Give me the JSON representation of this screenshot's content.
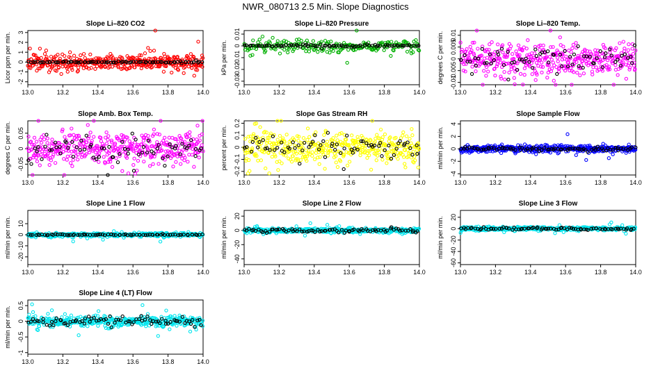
{
  "main_title": "NWR_080713  2.5 Min. Slope Diagnostics",
  "chart_data": [
    {
      "type": "scatter",
      "title": "Slope Li–820 CO2",
      "ylabel": "Licor ppm per min.",
      "xlim": [
        13.0,
        14.0
      ],
      "ylim": [
        -2.3,
        3.2
      ],
      "yticks": [
        -2,
        -1,
        0,
        1,
        2,
        3
      ],
      "xticks": [
        13.0,
        13.2,
        13.4,
        13.6,
        13.8,
        14.0
      ],
      "series": [
        {
          "color": "#ff0000",
          "center": 0.0,
          "spread": 0.7,
          "n": 420,
          "seed": 11
        },
        {
          "color": "#000000",
          "center": 0.0,
          "spread": 0.06,
          "n": 80,
          "seed": 12
        }
      ]
    },
    {
      "type": "scatter",
      "title": "Slope Li–820 Pressure",
      "ylabel": "kPa per min.",
      "xlim": [
        13.0,
        14.0
      ],
      "ylim": [
        -0.033,
        0.013
      ],
      "yticks": [
        -0.03,
        -0.02,
        -0.01,
        0.0,
        0.01
      ],
      "xticks": [
        13.0,
        13.2,
        13.4,
        13.6,
        13.8,
        14.0
      ],
      "series": [
        {
          "color": "#00b000",
          "center": 0.0,
          "spread": 0.005,
          "n": 240,
          "seed": 21
        },
        {
          "color": "#000000",
          "center": 0.0,
          "spread": 0.0008,
          "n": 80,
          "seed": 22
        }
      ]
    },
    {
      "type": "scatter",
      "title": "Slope Li–820 Temp.",
      "ylabel": "degrees C per min.",
      "xlim": [
        13.0,
        14.0
      ],
      "ylim": [
        -0.011,
        0.012
      ],
      "yticks": [
        -0.01,
        -0.005,
        0.0,
        0.005,
        0.01
      ],
      "xticks": [
        13.0,
        13.2,
        13.4,
        13.6,
        13.8,
        14.0
      ],
      "series": [
        {
          "color": "#ff00ff",
          "center": 0.0,
          "spread": 0.006,
          "n": 420,
          "seed": 31
        },
        {
          "color": "#000000",
          "center": 0.0,
          "spread": 0.004,
          "n": 70,
          "seed": 32
        }
      ]
    },
    {
      "type": "scatter",
      "title": "Slope Amb. Box Temp.",
      "ylabel": "degrees C per min.",
      "xlim": [
        13.0,
        14.0
      ],
      "ylim": [
        -0.085,
        0.09
      ],
      "yticks": [
        -0.05,
        0.0,
        0.05
      ],
      "xticks": [
        13.0,
        13.2,
        13.4,
        13.6,
        13.8,
        14.0
      ],
      "series": [
        {
          "color": "#ff00ff",
          "center": 0.0,
          "spread": 0.045,
          "n": 420,
          "seed": 41
        },
        {
          "color": "#000000",
          "center": 0.0,
          "spread": 0.035,
          "n": 70,
          "seed": 42
        }
      ]
    },
    {
      "type": "scatter",
      "title": "Slope Gas Stream RH",
      "ylabel": "percent per min.",
      "xlim": [
        13.0,
        14.0
      ],
      "ylim": [
        -0.23,
        0.22
      ],
      "yticks": [
        -0.2,
        -0.1,
        0.0,
        0.1,
        0.2
      ],
      "xticks": [
        13.0,
        13.2,
        13.4,
        13.6,
        13.8,
        14.0
      ],
      "series": [
        {
          "color": "#ffff00",
          "center": 0.0,
          "spread": 0.12,
          "n": 420,
          "seed": 51
        },
        {
          "color": "#000000",
          "center": 0.0,
          "spread": 0.08,
          "n": 70,
          "seed": 52
        }
      ]
    },
    {
      "type": "scatter",
      "title": "Slope Sample Flow",
      "ylabel": "ml/min per min.",
      "xlim": [
        13.0,
        14.0
      ],
      "ylim": [
        -4.2,
        4.5
      ],
      "yticks": [
        -4,
        -2,
        0,
        2,
        4
      ],
      "xticks": [
        13.0,
        13.2,
        13.4,
        13.6,
        13.8,
        14.0
      ],
      "series": [
        {
          "color": "#0000ff",
          "center": 0.0,
          "spread": 0.5,
          "n": 420,
          "seed": 61
        },
        {
          "color": "#000000",
          "center": 0.0,
          "spread": 0.3,
          "n": 80,
          "seed": 62
        }
      ]
    },
    {
      "type": "scatter",
      "title": "Slope Line 1 Flow",
      "ylabel": "ml/min per min.",
      "xlim": [
        13.0,
        14.0
      ],
      "ylim": [
        -27,
        22
      ],
      "yticks": [
        -20,
        -10,
        0,
        10
      ],
      "xticks": [
        13.0,
        13.2,
        13.4,
        13.6,
        13.8,
        14.0
      ],
      "series": [
        {
          "color": "#00e5ee",
          "center": 0.0,
          "spread": 1.5,
          "n": 420,
          "seed": 71
        },
        {
          "color": "#000000",
          "center": 0.0,
          "spread": 0.4,
          "n": 80,
          "seed": 72
        }
      ]
    },
    {
      "type": "scatter",
      "title": "Slope Line 2 Flow",
      "ylabel": "ml/min per min.",
      "xlim": [
        13.0,
        14.0
      ],
      "ylim": [
        -48,
        28
      ],
      "yticks": [
        -40,
        -20,
        0,
        20
      ],
      "xticks": [
        13.0,
        13.2,
        13.4,
        13.6,
        13.8,
        14.0
      ],
      "series": [
        {
          "color": "#00e5ee",
          "center": 0.0,
          "spread": 3.0,
          "n": 420,
          "seed": 81
        },
        {
          "color": "#000000",
          "center": 0.0,
          "spread": 2.5,
          "n": 80,
          "seed": 82
        }
      ]
    },
    {
      "type": "scatter",
      "title": "Slope Line 3 Flow",
      "ylabel": "ml/min per min.",
      "xlim": [
        13.0,
        14.0
      ],
      "ylim": [
        -63,
        32
      ],
      "yticks": [
        -60,
        -40,
        -20,
        0,
        20
      ],
      "xticks": [
        13.0,
        13.2,
        13.4,
        13.6,
        13.8,
        14.0
      ],
      "series": [
        {
          "color": "#00e5ee",
          "center": 0.0,
          "spread": 3.0,
          "n": 420,
          "seed": 91
        },
        {
          "color": "#000000",
          "center": 0.0,
          "spread": 2.0,
          "n": 80,
          "seed": 92
        }
      ]
    },
    {
      "type": "scatter",
      "title": "Slope Line 4 (LT) Flow",
      "ylabel": "ml/min per min.",
      "xlim": [
        13.0,
        14.0
      ],
      "ylim": [
        -1.05,
        0.68
      ],
      "yticks": [
        -1.0,
        -0.5,
        0.0,
        0.5
      ],
      "xticks": [
        13.0,
        13.2,
        13.4,
        13.6,
        13.8,
        14.0
      ],
      "series": [
        {
          "color": "#00e5ee",
          "center": 0.0,
          "spread": 0.15,
          "n": 420,
          "seed": 101
        },
        {
          "color": "#000000",
          "center": 0.0,
          "spread": 0.12,
          "n": 80,
          "seed": 102
        }
      ]
    }
  ]
}
